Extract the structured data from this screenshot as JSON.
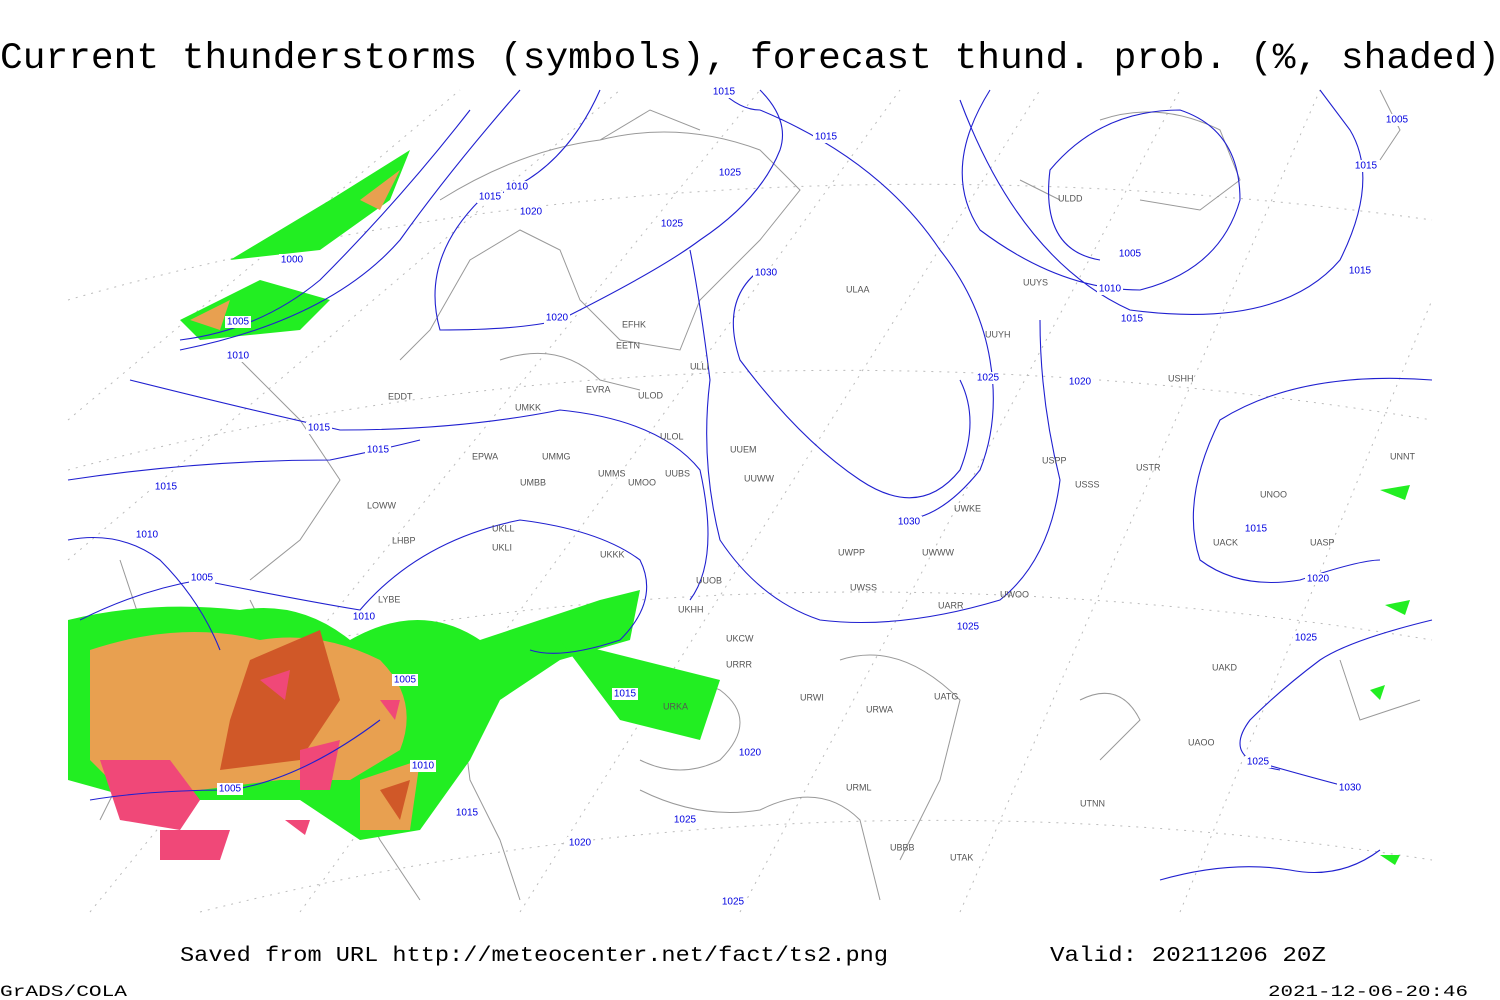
{
  "header": {
    "title": "Current thunderstorms (symbols), forecast thund. prob. (%, shaded)"
  },
  "isobar_labels": [
    "1015",
    "1015",
    "1010",
    "1015",
    "1020",
    "1025",
    "1025",
    "1000",
    "1005",
    "1010",
    "1020",
    "1030",
    "1015",
    "1015",
    "1015",
    "1010",
    "1005",
    "1010",
    "1005",
    "1005",
    "1010",
    "1015",
    "1020",
    "1025",
    "1025",
    "1020",
    "1015",
    "1025",
    "1030",
    "1025",
    "1020",
    "1015",
    "1010",
    "1005",
    "1015",
    "1015",
    "1005",
    "1020",
    "1015",
    "1025",
    "1025",
    "1030"
  ],
  "stations": [
    "EFHK",
    "EETN",
    "ULLI",
    "ULOL",
    "UUEM",
    "UUWW",
    "UMMS",
    "UMOO",
    "UUBS",
    "EPWA",
    "UMMG",
    "UMBB",
    "LOWW",
    "LHBP",
    "UKLL",
    "UKKK",
    "UKLI",
    "EDDT",
    "UMKK",
    "EVRA",
    "ULOD",
    "UKHH",
    "UUOB",
    "UKCW",
    "URRR",
    "URKA",
    "URWI",
    "URWA",
    "UATG",
    "UWWW",
    "UWPP",
    "UWSS",
    "UARR",
    "UWOO",
    "UWKE",
    "USPP",
    "USSS",
    "USTR",
    "ULDD",
    "UUYS",
    "UUYH",
    "USHH",
    "UNNT",
    "UNOO",
    "UACK",
    "UASP",
    "UAKD",
    "UAOO",
    "UTNN",
    "UTAK",
    "UBBB",
    "URML",
    "LYBE",
    "ULAA"
  ],
  "footer": {
    "saved": "Saved from URL http://meteocenter.net/fact/ts2.png",
    "valid": "Valid: 20211206 20Z",
    "software": "GrADS/COLA",
    "timestamp": "2021-12-06-20:46"
  }
}
